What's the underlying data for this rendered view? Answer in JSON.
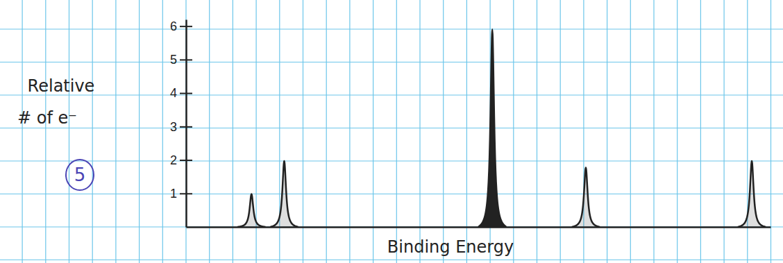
{
  "chart_data": {
    "type": "line",
    "xlabel": "Binding Energy",
    "ylabel": [
      "Relative",
      "# of e⁻"
    ],
    "annotation": "5",
    "x": [
      2.8,
      4.2,
      13.1,
      17.1,
      24.2
    ],
    "values": [
      1,
      2,
      6,
      1.8,
      2
    ],
    "xlim": [
      0,
      25
    ],
    "ylim": [
      0,
      6.2
    ],
    "yticks": [
      1,
      2,
      3,
      4,
      5,
      6
    ],
    "tick_labels": "y",
    "color": "#222222",
    "grid": true
  }
}
